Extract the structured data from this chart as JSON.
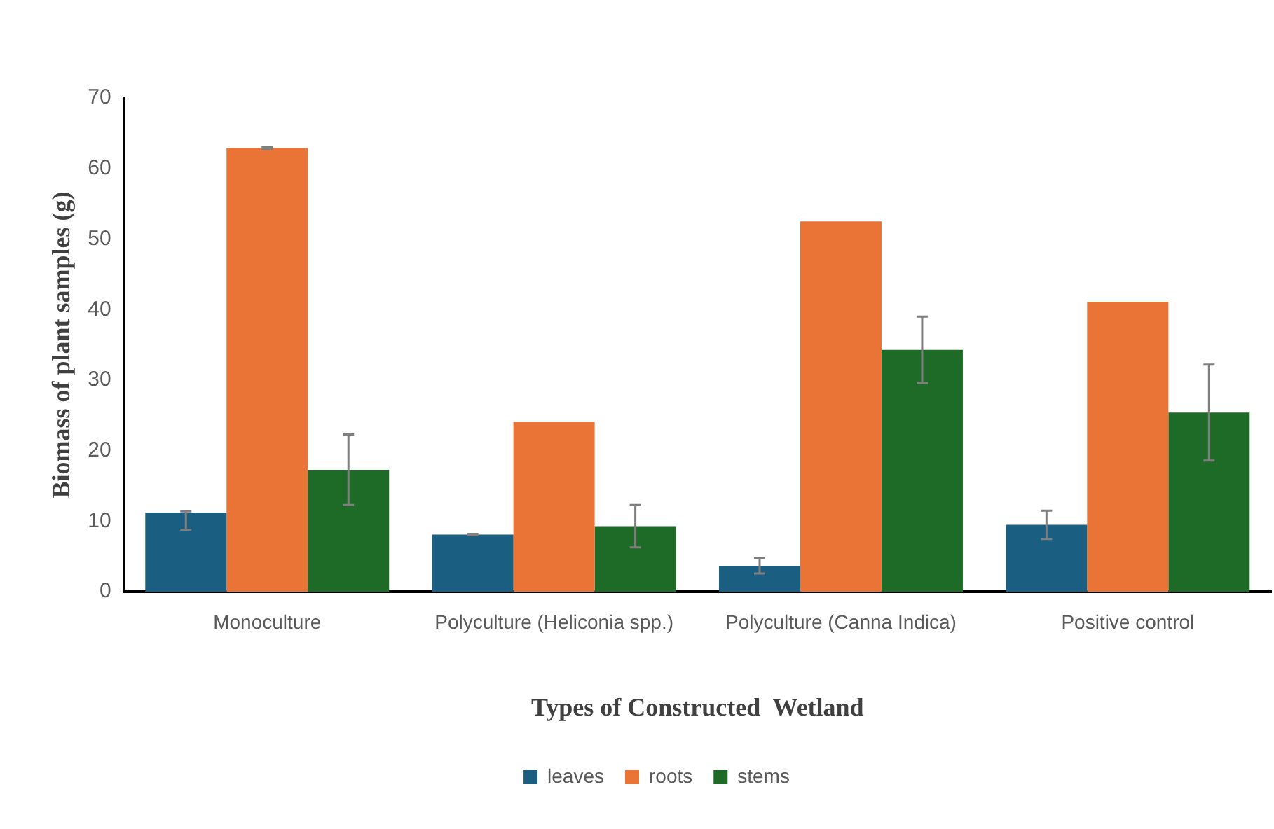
{
  "chart_data": {
    "type": "bar",
    "xlabel": "Types of Constructed  Wetland",
    "ylabel": "Biomass of plant samples (g)",
    "categories": [
      "Monoculture",
      "Polyculture (Heliconia spp.)",
      "Polyculture (Canna Indica)",
      "Positive control"
    ],
    "series": [
      {
        "name": "leaves",
        "color": "#1a5e82",
        "values": [
          11.2,
          8.1,
          3.7,
          9.5
        ],
        "errors": [
          [
            8.8,
            11.4
          ],
          0.1,
          1.1,
          2
        ]
      },
      {
        "name": "roots",
        "color": "#e97435",
        "values": [
          62.9,
          24.1,
          52.5,
          41.1
        ],
        "errors": [
          0.1,
          null,
          null,
          null
        ]
      },
      {
        "name": "stems",
        "color": "#1d6b26",
        "values": [
          17.3,
          9.3,
          34.3,
          25.4
        ],
        "errors": [
          5,
          3,
          4.7,
          6.8
        ]
      }
    ],
    "ylim": [
      0,
      70
    ],
    "yticks": [
      0,
      10,
      20,
      30,
      40,
      50,
      60,
      70
    ],
    "grid": false,
    "legend": "bottom"
  }
}
